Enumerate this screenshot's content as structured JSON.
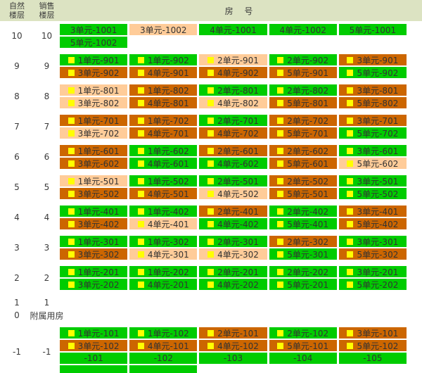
{
  "header": {
    "natural_floor_line1": "自然",
    "natural_floor_line2": "楼层",
    "sales_floor_line1": "销售",
    "sales_floor_line2": "楼层",
    "room_label": "房 号"
  },
  "colors": {
    "green": "#00CC00",
    "orange": "#CC6600",
    "peach": "#FFCC99",
    "marker_yellow": "#FFFF00",
    "header_bg": "#DCE3C2"
  },
  "icons": {
    "cell_marker": "yellow-square"
  },
  "floors": [
    {
      "natural": "10",
      "sales": "10",
      "rows": [
        [
          {
            "label": "3单元-1001",
            "status": "green",
            "icon": false
          },
          {
            "label": "3单元-1002",
            "status": "peach",
            "icon": false
          },
          {
            "label": "4单元-1001",
            "status": "green",
            "icon": false
          },
          {
            "label": "4单元-1002",
            "status": "green",
            "icon": false
          },
          {
            "label": "5单元-1001",
            "status": "green",
            "icon": false
          }
        ],
        [
          {
            "label": "5单元-1002",
            "status": "green",
            "icon": false
          },
          null,
          null,
          null,
          null
        ]
      ]
    },
    {
      "natural": "9",
      "sales": "9",
      "rows": [
        [
          {
            "label": "1单元-901",
            "status": "green",
            "icon": true
          },
          {
            "label": "1单元-902",
            "status": "green",
            "icon": true
          },
          {
            "label": "2单元-901",
            "status": "peach",
            "icon": true
          },
          {
            "label": "2单元-902",
            "status": "green",
            "icon": true
          },
          {
            "label": "3单元-901",
            "status": "orange",
            "icon": true
          }
        ],
        [
          {
            "label": "3单元-902",
            "status": "orange",
            "icon": true
          },
          {
            "label": "4单元-901",
            "status": "orange",
            "icon": true
          },
          {
            "label": "4单元-902",
            "status": "orange",
            "icon": true
          },
          {
            "label": "5单元-901",
            "status": "orange",
            "icon": true
          },
          {
            "label": "5单元-902",
            "status": "green",
            "icon": true
          }
        ]
      ]
    },
    {
      "natural": "8",
      "sales": "8",
      "rows": [
        [
          {
            "label": "1单元-801",
            "status": "peach",
            "icon": true
          },
          {
            "label": "1单元-802",
            "status": "orange",
            "icon": true
          },
          {
            "label": "2单元-801",
            "status": "green",
            "icon": true
          },
          {
            "label": "2单元-802",
            "status": "green",
            "icon": true
          },
          {
            "label": "3单元-801",
            "status": "orange",
            "icon": true
          }
        ],
        [
          {
            "label": "3单元-802",
            "status": "peach",
            "icon": true
          },
          {
            "label": "4单元-801",
            "status": "orange",
            "icon": true
          },
          {
            "label": "4单元-802",
            "status": "peach",
            "icon": true
          },
          {
            "label": "5单元-801",
            "status": "orange",
            "icon": true
          },
          {
            "label": "5单元-802",
            "status": "orange",
            "icon": true
          }
        ]
      ]
    },
    {
      "natural": "7",
      "sales": "7",
      "rows": [
        [
          {
            "label": "1单元-701",
            "status": "orange",
            "icon": true
          },
          {
            "label": "1单元-702",
            "status": "orange",
            "icon": true
          },
          {
            "label": "2单元-701",
            "status": "green",
            "icon": true
          },
          {
            "label": "2单元-702",
            "status": "orange",
            "icon": true
          },
          {
            "label": "3单元-701",
            "status": "orange",
            "icon": true
          }
        ],
        [
          {
            "label": "3单元-702",
            "status": "peach",
            "icon": true
          },
          {
            "label": "4单元-701",
            "status": "orange",
            "icon": true
          },
          {
            "label": "4单元-702",
            "status": "orange",
            "icon": true
          },
          {
            "label": "5单元-701",
            "status": "orange",
            "icon": true
          },
          {
            "label": "5单元-702",
            "status": "green",
            "icon": true
          }
        ]
      ]
    },
    {
      "natural": "6",
      "sales": "6",
      "rows": [
        [
          {
            "label": "1单元-601",
            "status": "orange",
            "icon": true
          },
          {
            "label": "1单元-602",
            "status": "green",
            "icon": true
          },
          {
            "label": "2单元-601",
            "status": "orange",
            "icon": true
          },
          {
            "label": "2单元-602",
            "status": "orange",
            "icon": true
          },
          {
            "label": "3单元-601",
            "status": "green",
            "icon": true
          }
        ],
        [
          {
            "label": "3单元-602",
            "status": "orange",
            "icon": true
          },
          {
            "label": "4单元-601",
            "status": "green",
            "icon": true
          },
          {
            "label": "4单元-602",
            "status": "green",
            "icon": true
          },
          {
            "label": "5单元-601",
            "status": "orange",
            "icon": true
          },
          {
            "label": "5单元-602",
            "status": "peach",
            "icon": true
          }
        ]
      ]
    },
    {
      "natural": "5",
      "sales": "5",
      "rows": [
        [
          {
            "label": "1单元-501",
            "status": "peach",
            "icon": true
          },
          {
            "label": "1单元-502",
            "status": "green",
            "icon": true
          },
          {
            "label": "2单元-501",
            "status": "green",
            "icon": true
          },
          {
            "label": "2单元-502",
            "status": "orange",
            "icon": true
          },
          {
            "label": "3单元-501",
            "status": "green",
            "icon": true
          }
        ],
        [
          {
            "label": "3单元-502",
            "status": "orange",
            "icon": true
          },
          {
            "label": "4单元-501",
            "status": "orange",
            "icon": true
          },
          {
            "label": "4单元-502",
            "status": "peach",
            "icon": true
          },
          {
            "label": "5单元-501",
            "status": "orange",
            "icon": true
          },
          {
            "label": "5单元-502",
            "status": "green",
            "icon": true
          }
        ]
      ]
    },
    {
      "natural": "4",
      "sales": "4",
      "rows": [
        [
          {
            "label": "1单元-401",
            "status": "green",
            "icon": true
          },
          {
            "label": "1单元-402",
            "status": "green",
            "icon": true
          },
          {
            "label": "2单元-401",
            "status": "orange",
            "icon": true
          },
          {
            "label": "2单元-402",
            "status": "green",
            "icon": true
          },
          {
            "label": "3单元-401",
            "status": "orange",
            "icon": true
          }
        ],
        [
          {
            "label": "3单元-402",
            "status": "orange",
            "icon": true
          },
          {
            "label": "4单元-401",
            "status": "peach",
            "icon": true
          },
          {
            "label": "4单元-402",
            "status": "green",
            "icon": true
          },
          {
            "label": "5单元-401",
            "status": "green",
            "icon": true
          },
          {
            "label": "5单元-402",
            "status": "orange",
            "icon": true
          }
        ]
      ]
    },
    {
      "natural": "3",
      "sales": "3",
      "rows": [
        [
          {
            "label": "1单元-301",
            "status": "green",
            "icon": true
          },
          {
            "label": "1单元-302",
            "status": "green",
            "icon": true
          },
          {
            "label": "2单元-301",
            "status": "green",
            "icon": true
          },
          {
            "label": "2单元-302",
            "status": "orange",
            "icon": true
          },
          {
            "label": "3单元-301",
            "status": "green",
            "icon": true
          }
        ],
        [
          {
            "label": "3单元-302",
            "status": "orange",
            "icon": true
          },
          {
            "label": "4单元-301",
            "status": "peach",
            "icon": true
          },
          {
            "label": "4单元-302",
            "status": "peach",
            "icon": true
          },
          {
            "label": "5单元-301",
            "status": "green",
            "icon": true
          },
          {
            "label": "5单元-302",
            "status": "orange",
            "icon": true
          }
        ]
      ]
    },
    {
      "natural": "2",
      "sales": "2",
      "rows": [
        [
          {
            "label": "1单元-201",
            "status": "green",
            "icon": true
          },
          {
            "label": "1单元-202",
            "status": "green",
            "icon": true
          },
          {
            "label": "2单元-201",
            "status": "green",
            "icon": true
          },
          {
            "label": "2单元-202",
            "status": "green",
            "icon": true
          },
          {
            "label": "3单元-201",
            "status": "green",
            "icon": true
          }
        ],
        [
          {
            "label": "3单元-202",
            "status": "green",
            "icon": true
          },
          {
            "label": "4单元-201",
            "status": "green",
            "icon": true
          },
          {
            "label": "4单元-202",
            "status": "green",
            "icon": true
          },
          {
            "label": "5单元-201",
            "status": "green",
            "icon": true
          },
          {
            "label": "5单元-202",
            "status": "green",
            "icon": true
          }
        ]
      ]
    },
    {
      "natural": "1",
      "sales": "1",
      "rows": []
    },
    {
      "natural": "0",
      "sales": "附属用房",
      "rows": []
    },
    {
      "natural": "-1",
      "sales": "-1",
      "rows": [
        [
          {
            "label": "1单元-101",
            "status": "green",
            "icon": true
          },
          {
            "label": "1单元-102",
            "status": "green",
            "icon": true
          },
          {
            "label": "2单元-101",
            "status": "orange",
            "icon": true
          },
          {
            "label": "2单元-102",
            "status": "green",
            "icon": true
          },
          {
            "label": "3单元-101",
            "status": "orange",
            "icon": true
          }
        ],
        [
          {
            "label": "3单元-102",
            "status": "orange",
            "icon": true
          },
          {
            "label": "4单元-101",
            "status": "orange",
            "icon": true
          },
          {
            "label": "4单元-102",
            "status": "orange",
            "icon": true
          },
          {
            "label": "5单元-101",
            "status": "orange",
            "icon": true
          },
          {
            "label": "5单元-102",
            "status": "orange",
            "icon": true
          }
        ],
        [
          {
            "label": "-101",
            "status": "green",
            "icon": false
          },
          {
            "label": "-102",
            "status": "green",
            "icon": false
          },
          {
            "label": "-103",
            "status": "green",
            "icon": false
          },
          {
            "label": "-104",
            "status": "green",
            "icon": false
          },
          {
            "label": "-105",
            "status": "green",
            "icon": false
          }
        ],
        [
          {
            "label": "",
            "status": "green",
            "icon": false
          },
          {
            "label": "",
            "status": "green",
            "icon": false
          },
          null,
          null,
          null
        ]
      ]
    }
  ]
}
